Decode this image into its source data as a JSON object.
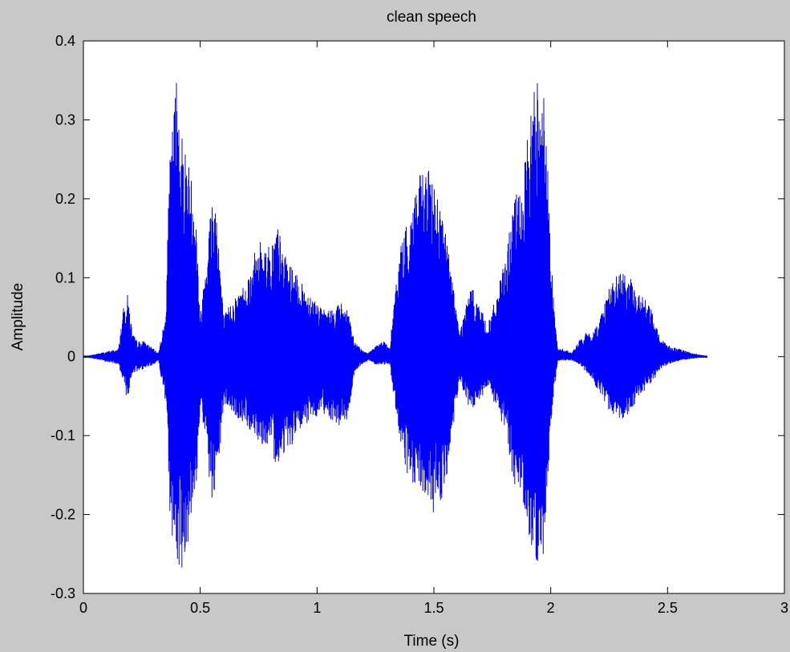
{
  "chart_data": {
    "type": "line",
    "title": "clean speech",
    "xlabel": "Time (s)",
    "ylabel": "Amplitude",
    "xlim": [
      0,
      3
    ],
    "ylim": [
      -0.3,
      0.4
    ],
    "x_ticks": [
      0,
      0.5,
      1,
      1.5,
      2,
      2.5,
      3
    ],
    "x_tick_labels": [
      "0",
      "0.5",
      "1",
      "1.5",
      "2",
      "2.5",
      "3"
    ],
    "y_ticks": [
      -0.3,
      -0.2,
      -0.1,
      0,
      0.1,
      0.2,
      0.3,
      0.4
    ],
    "y_tick_labels": [
      "-0.3",
      "-0.2",
      "-0.1",
      "0",
      "0.1",
      "0.2",
      "0.3",
      "0.4"
    ],
    "grid": false,
    "line_color": "#0000ff",
    "background_color": "#ffffff",
    "figure_color": "#c8c8c8",
    "series": [
      {
        "envelope": {
          "x": [
            0.0,
            0.15,
            0.17,
            0.19,
            0.21,
            0.23,
            0.26,
            0.3,
            0.32,
            0.35,
            0.37,
            0.4,
            0.42,
            0.45,
            0.48,
            0.5,
            0.53,
            0.55,
            0.57,
            0.6,
            0.63,
            0.66,
            0.7,
            0.73,
            0.76,
            0.8,
            0.83,
            0.86,
            0.9,
            0.94,
            0.98,
            1.02,
            1.06,
            1.1,
            1.13,
            1.16,
            1.19,
            1.22,
            1.25,
            1.29,
            1.31,
            1.34,
            1.36,
            1.39,
            1.42,
            1.46,
            1.5,
            1.54,
            1.58,
            1.61,
            1.64,
            1.66,
            1.69,
            1.73,
            1.77,
            1.81,
            1.84,
            1.88,
            1.92,
            1.96,
            1.99,
            2.01,
            2.03,
            2.06,
            2.09,
            2.12,
            2.15,
            2.18,
            2.21,
            2.25,
            2.3,
            2.34,
            2.38,
            2.42,
            2.46,
            2.5,
            2.55,
            2.6,
            2.65,
            2.67
          ],
          "upper": [
            0.0,
            0.01,
            0.06,
            0.08,
            0.03,
            0.02,
            0.02,
            0.01,
            0.005,
            0.05,
            0.25,
            0.37,
            0.29,
            0.25,
            0.2,
            0.05,
            0.15,
            0.21,
            0.2,
            0.05,
            0.07,
            0.08,
            0.1,
            0.13,
            0.15,
            0.14,
            0.17,
            0.13,
            0.11,
            0.09,
            0.08,
            0.06,
            0.06,
            0.07,
            0.06,
            0.02,
            0.01,
            0.005,
            0.015,
            0.02,
            0.01,
            0.1,
            0.15,
            0.17,
            0.22,
            0.24,
            0.23,
            0.18,
            0.1,
            0.03,
            0.07,
            0.09,
            0.07,
            0.04,
            0.08,
            0.13,
            0.2,
            0.22,
            0.33,
            0.39,
            0.23,
            0.08,
            0.01,
            0.01,
            0.005,
            0.02,
            0.03,
            0.03,
            0.05,
            0.09,
            0.11,
            0.1,
            0.08,
            0.07,
            0.03,
            0.015,
            0.01,
            0.005,
            0.002,
            0.0
          ],
          "lower": [
            0.0,
            -0.01,
            -0.04,
            -0.055,
            -0.02,
            -0.02,
            -0.015,
            -0.01,
            -0.005,
            -0.06,
            -0.21,
            -0.27,
            -0.27,
            -0.23,
            -0.18,
            -0.06,
            -0.13,
            -0.2,
            -0.17,
            -0.06,
            -0.07,
            -0.08,
            -0.09,
            -0.1,
            -0.11,
            -0.12,
            -0.14,
            -0.12,
            -0.11,
            -0.09,
            -0.08,
            -0.07,
            -0.08,
            -0.09,
            -0.08,
            -0.02,
            -0.01,
            -0.005,
            -0.01,
            -0.01,
            -0.01,
            -0.08,
            -0.12,
            -0.16,
            -0.17,
            -0.18,
            -0.2,
            -0.18,
            -0.1,
            -0.03,
            -0.06,
            -0.07,
            -0.06,
            -0.04,
            -0.07,
            -0.1,
            -0.16,
            -0.18,
            -0.25,
            -0.29,
            -0.15,
            -0.05,
            -0.005,
            -0.005,
            -0.005,
            -0.01,
            -0.02,
            -0.03,
            -0.05,
            -0.07,
            -0.08,
            -0.07,
            -0.05,
            -0.04,
            -0.02,
            -0.01,
            -0.005,
            -0.003,
            -0.001,
            0.0
          ]
        }
      }
    ]
  }
}
